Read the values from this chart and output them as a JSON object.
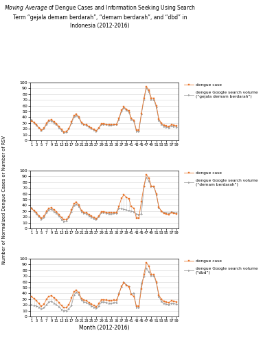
{
  "title": "*Moving Average* of Dengue Cases and Information Seeking Using Search\nTerm “gejala demam berdarah”, “demam berdarah”, and “dbd” in\nIndonesia (2012-2016)",
  "xlabel": "Month (2012-2016)",
  "ylabel": "Number of Normalized Dengue Cases or Number of RSV",
  "xtick_labels": [
    "1",
    "3",
    "5",
    "7",
    "9",
    "11",
    "13",
    "15",
    "17",
    "19",
    "21",
    "23",
    "25",
    "27",
    "29",
    "31",
    "33",
    "35",
    "37",
    "39",
    "41",
    "43",
    "45",
    "47",
    "49",
    "51",
    "53",
    "55",
    "57",
    "59"
  ],
  "xtick_positions": [
    1,
    3,
    5,
    7,
    9,
    11,
    13,
    15,
    17,
    19,
    21,
    23,
    25,
    27,
    29,
    31,
    33,
    35,
    37,
    39,
    41,
    43,
    45,
    47,
    49,
    51,
    53,
    55,
    57,
    59
  ],
  "dengue_case": [
    34,
    31,
    27,
    22,
    18,
    21,
    30,
    35,
    36,
    32,
    29,
    24,
    19,
    15,
    16,
    20,
    32,
    43,
    45,
    41,
    31,
    28,
    27,
    24,
    21,
    19,
    17,
    22,
    29,
    29,
    28,
    27,
    27,
    28,
    28,
    38,
    52,
    58,
    54,
    51,
    38,
    35,
    18,
    18,
    47,
    73,
    93,
    87,
    73,
    73,
    60,
    37,
    30,
    26,
    25,
    24,
    27,
    26,
    25
  ],
  "search1_panel1": [
    36,
    30,
    26,
    21,
    17,
    20,
    28,
    33,
    34,
    30,
    27,
    22,
    17,
    13,
    14,
    20,
    30,
    40,
    43,
    39,
    30,
    27,
    26,
    23,
    20,
    18,
    16,
    21,
    28,
    28,
    27,
    26,
    26,
    27,
    27,
    36,
    50,
    56,
    52,
    49,
    36,
    33,
    16,
    16,
    45,
    70,
    90,
    84,
    70,
    70,
    57,
    35,
    28,
    24,
    23,
    22,
    25,
    24,
    23
  ],
  "search2_panel2": [
    36,
    30,
    25,
    20,
    16,
    19,
    27,
    32,
    33,
    29,
    26,
    21,
    16,
    12,
    13,
    19,
    29,
    39,
    42,
    38,
    29,
    26,
    25,
    22,
    19,
    17,
    15,
    20,
    27,
    27,
    26,
    25,
    25,
    26,
    26,
    35,
    34,
    33,
    32,
    31,
    30,
    29,
    25,
    24,
    25,
    72,
    88,
    82,
    72,
    72,
    58,
    36,
    30,
    28,
    27,
    26,
    29,
    28,
    27
  ],
  "search3_panel3": [
    20,
    19,
    18,
    16,
    13,
    15,
    20,
    25,
    26,
    23,
    20,
    17,
    12,
    10,
    10,
    13,
    19,
    37,
    42,
    38,
    28,
    25,
    24,
    21,
    18,
    16,
    14,
    18,
    25,
    25,
    24,
    23,
    23,
    24,
    24,
    40,
    51,
    59,
    55,
    52,
    39,
    40,
    15,
    15,
    57,
    69,
    83,
    77,
    70,
    70,
    58,
    35,
    26,
    22,
    21,
    20,
    23,
    22,
    21
  ],
  "dengue_color": "#E8762C",
  "search_color": "#A0A0A0",
  "legend_dengue": "dengue case",
  "legend_search1": "dengue Google search volume\n(“gejala demam berdarah”)",
  "legend_search2": "dengue Google search volume\n(“demam berdarah”)",
  "legend_search3": "dengue Google search volume\n(“dbd”)",
  "ylim": [
    0,
    100
  ],
  "yticks": [
    0,
    10,
    20,
    30,
    40,
    50,
    60,
    70,
    80,
    90,
    100
  ]
}
